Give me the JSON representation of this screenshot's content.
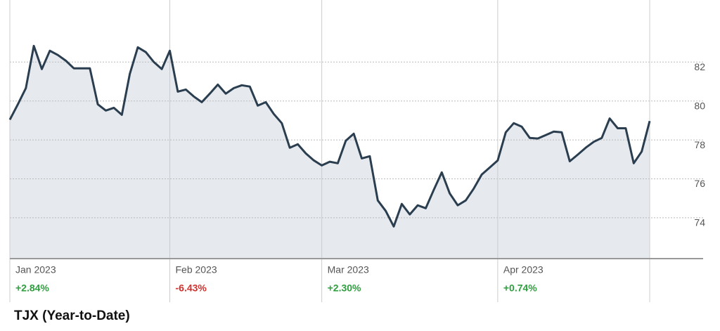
{
  "chart_data": {
    "type": "line",
    "title": "TJX (Year-to-Date)",
    "categories": [
      "Jan 2023",
      null,
      null,
      null,
      null,
      null,
      null,
      null,
      null,
      null,
      null,
      null,
      null,
      null,
      null,
      null,
      null,
      null,
      null,
      null,
      "Feb 2023",
      null,
      null,
      null,
      null,
      null,
      null,
      null,
      null,
      null,
      null,
      null,
      null,
      null,
      null,
      null,
      null,
      null,
      null,
      "Mar 2023",
      null,
      null,
      null,
      null,
      null,
      null,
      null,
      null,
      null,
      null,
      null,
      null,
      null,
      null,
      null,
      null,
      null,
      null,
      null,
      null,
      null,
      "Apr 2023",
      null,
      null,
      null,
      null,
      null,
      null,
      null,
      null,
      null,
      null,
      null,
      null,
      null,
      null,
      null,
      null,
      null,
      null,
      null
    ],
    "values": [
      79.04,
      79.83,
      80.66,
      82.83,
      81.64,
      82.58,
      82.36,
      82.07,
      81.68,
      81.68,
      81.68,
      79.83,
      79.51,
      79.65,
      79.29,
      81.39,
      82.76,
      82.51,
      82.0,
      81.64,
      82.58,
      80.48,
      80.59,
      80.23,
      79.94,
      80.38,
      80.84,
      80.38,
      80.66,
      80.81,
      80.74,
      79.76,
      79.94,
      79.33,
      78.86,
      77.6,
      77.78,
      77.31,
      76.95,
      76.69,
      76.88,
      76.8,
      77.96,
      78.32,
      77.05,
      77.16,
      74.89,
      74.35,
      73.55,
      74.71,
      74.17,
      74.64,
      74.49,
      75.43,
      76.33,
      75.25,
      74.64,
      74.89,
      75.5,
      76.22,
      76.58,
      76.95,
      78.39,
      78.86,
      78.68,
      78.1,
      78.07,
      78.25,
      78.43,
      78.39,
      76.9,
      77.24,
      77.6,
      77.9,
      78.1,
      79.1,
      78.6,
      78.6,
      76.8,
      77.4,
      78.97
    ],
    "period_changes": [
      "+2.84%",
      "-6.43%",
      "+2.30%",
      "+0.74%"
    ],
    "period_change_colors": [
      "#2e9e3e",
      "#d0312d",
      "#2e9e3e",
      "#2e9e3e"
    ],
    "color": "#2b3e50",
    "fill_color": "#e6eaef",
    "ylim": [
      71.9,
      84.9
    ],
    "yticks": [
      74,
      76,
      78,
      80,
      82
    ],
    "grid": true,
    "y_axis_side": "right"
  }
}
